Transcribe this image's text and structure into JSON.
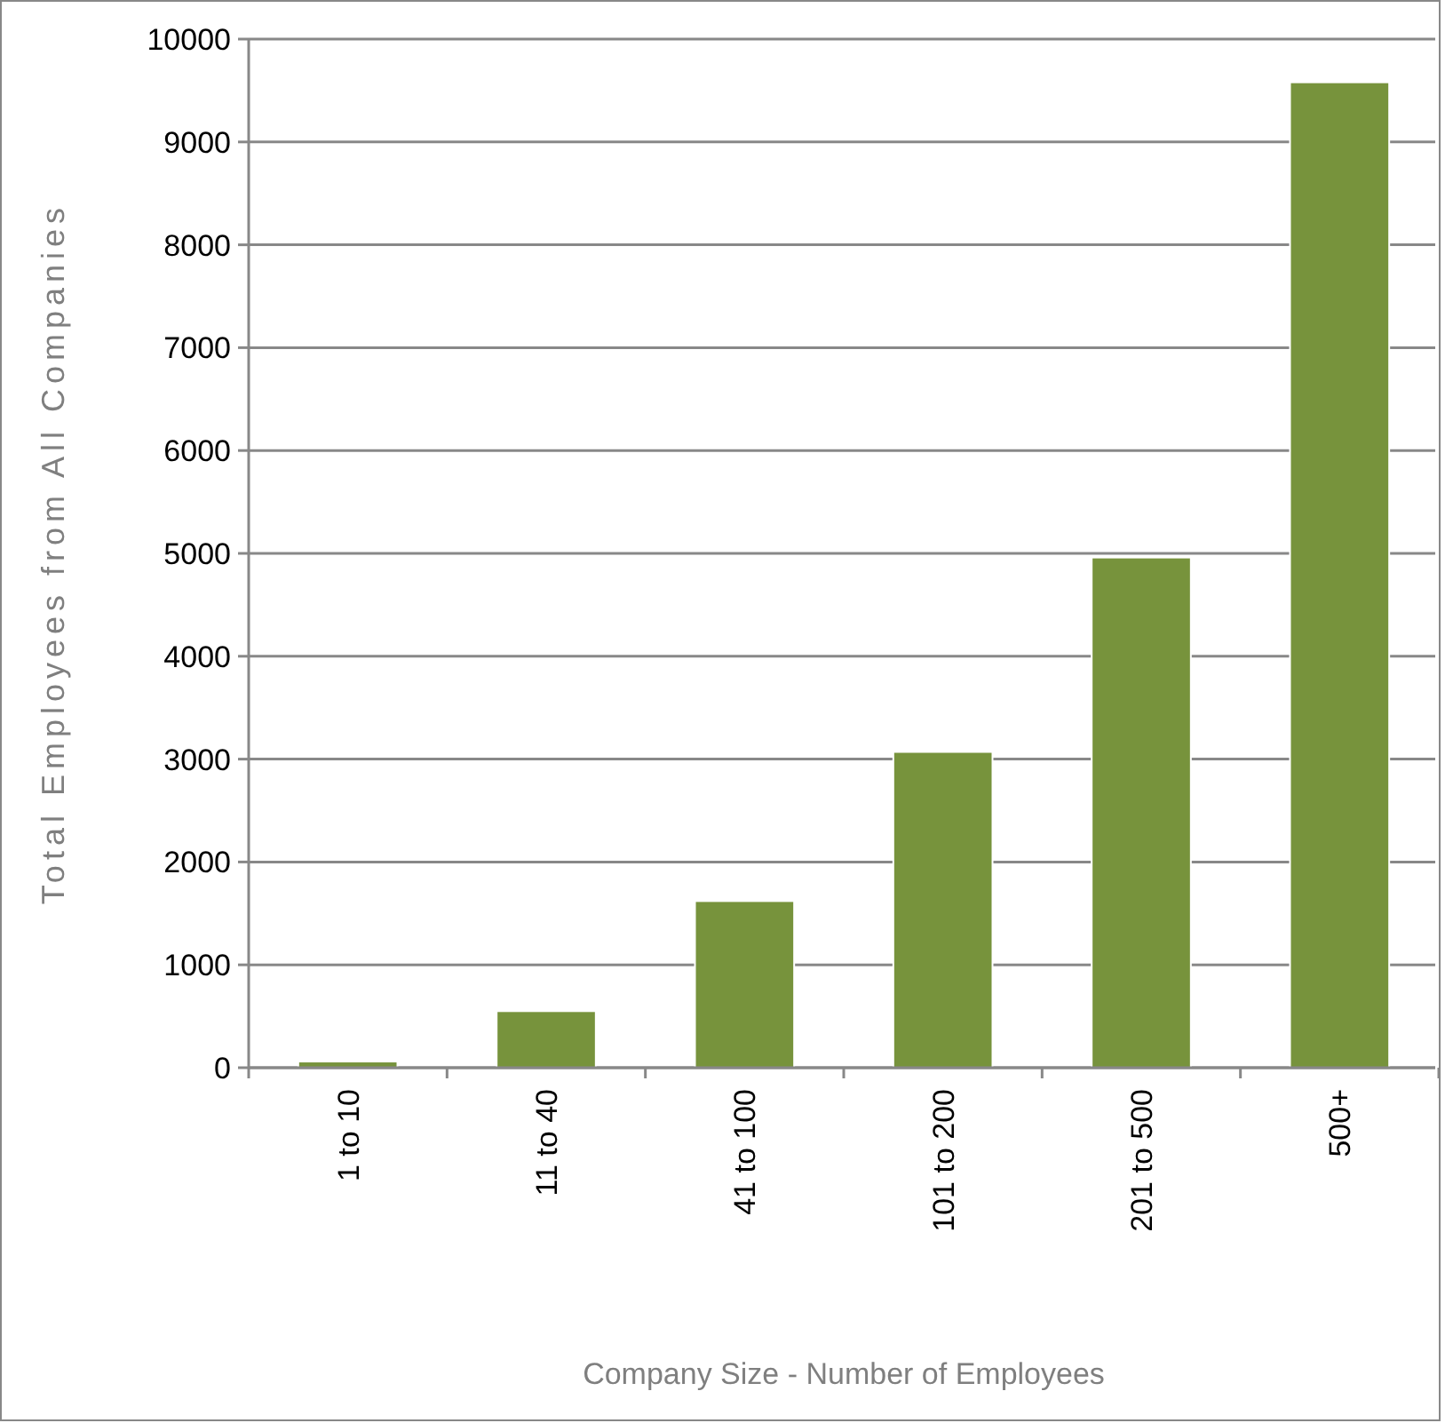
{
  "chart_data": {
    "type": "bar",
    "xlabel": "Company Size - Number of Employees",
    "ylabel": "Total Employees from All Companies",
    "categories": [
      "1 to 10",
      "11 to 40",
      "41 to 100",
      "101 to 200",
      "201 to 500",
      "500+"
    ],
    "values": [
      60,
      550,
      1620,
      3070,
      4960,
      9580
    ],
    "color": "#77933c",
    "ylim": [
      0,
      10000
    ],
    "yticks": [
      0,
      1000,
      2000,
      3000,
      4000,
      5000,
      6000,
      7000,
      8000,
      9000,
      10000
    ],
    "grid": "y"
  }
}
